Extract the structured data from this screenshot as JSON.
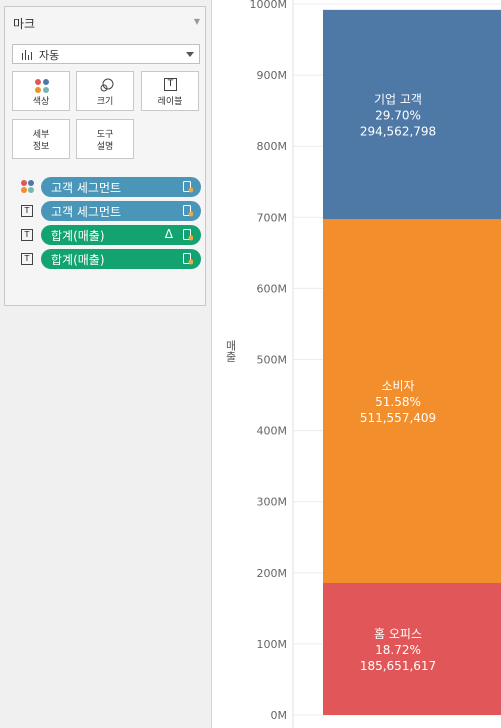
{
  "marks_card": {
    "title": "마크",
    "mark_type": "자동",
    "tiles": {
      "color": "색상",
      "size": "크기",
      "label": "레이블",
      "detail": "세부\n정보",
      "tooltip": "도구\n설명"
    },
    "fields": [
      {
        "icon": "color-icon",
        "label": "고객 세그먼트",
        "kind": "dimension",
        "delta": ""
      },
      {
        "icon": "label-icon",
        "label": "고객 세그먼트",
        "kind": "dimension",
        "delta": ""
      },
      {
        "icon": "label-icon",
        "label": "합계(매출)",
        "kind": "measure",
        "delta": "Δ"
      },
      {
        "icon": "label-icon",
        "label": "합계(매출)",
        "kind": "measure",
        "delta": ""
      }
    ]
  },
  "colors": {
    "corporate": "#4e79a7",
    "consumer": "#f28e2b",
    "home_office": "#e15759",
    "pill_dimension": "#4a96b8",
    "pill_measure": "#12a370"
  },
  "chart_data": {
    "type": "bar",
    "stacked": true,
    "ylabel": "매출",
    "ylim": [
      0,
      1000000000
    ],
    "y_ticks": [
      "0M",
      "100M",
      "200M",
      "300M",
      "400M",
      "500M",
      "600M",
      "700M",
      "800M",
      "900M",
      "1000M"
    ],
    "grid": true,
    "series": [
      {
        "name": "홈 오피스",
        "value": 185651617,
        "percent": "18.72%",
        "value_label": "185,651,617"
      },
      {
        "name": "소비자",
        "value": 511557409,
        "percent": "51.58%",
        "value_label": "511,557,409"
      },
      {
        "name": "기업 고객",
        "value": 294562798,
        "percent": "29.70%",
        "value_label": "294,562,798"
      }
    ]
  }
}
